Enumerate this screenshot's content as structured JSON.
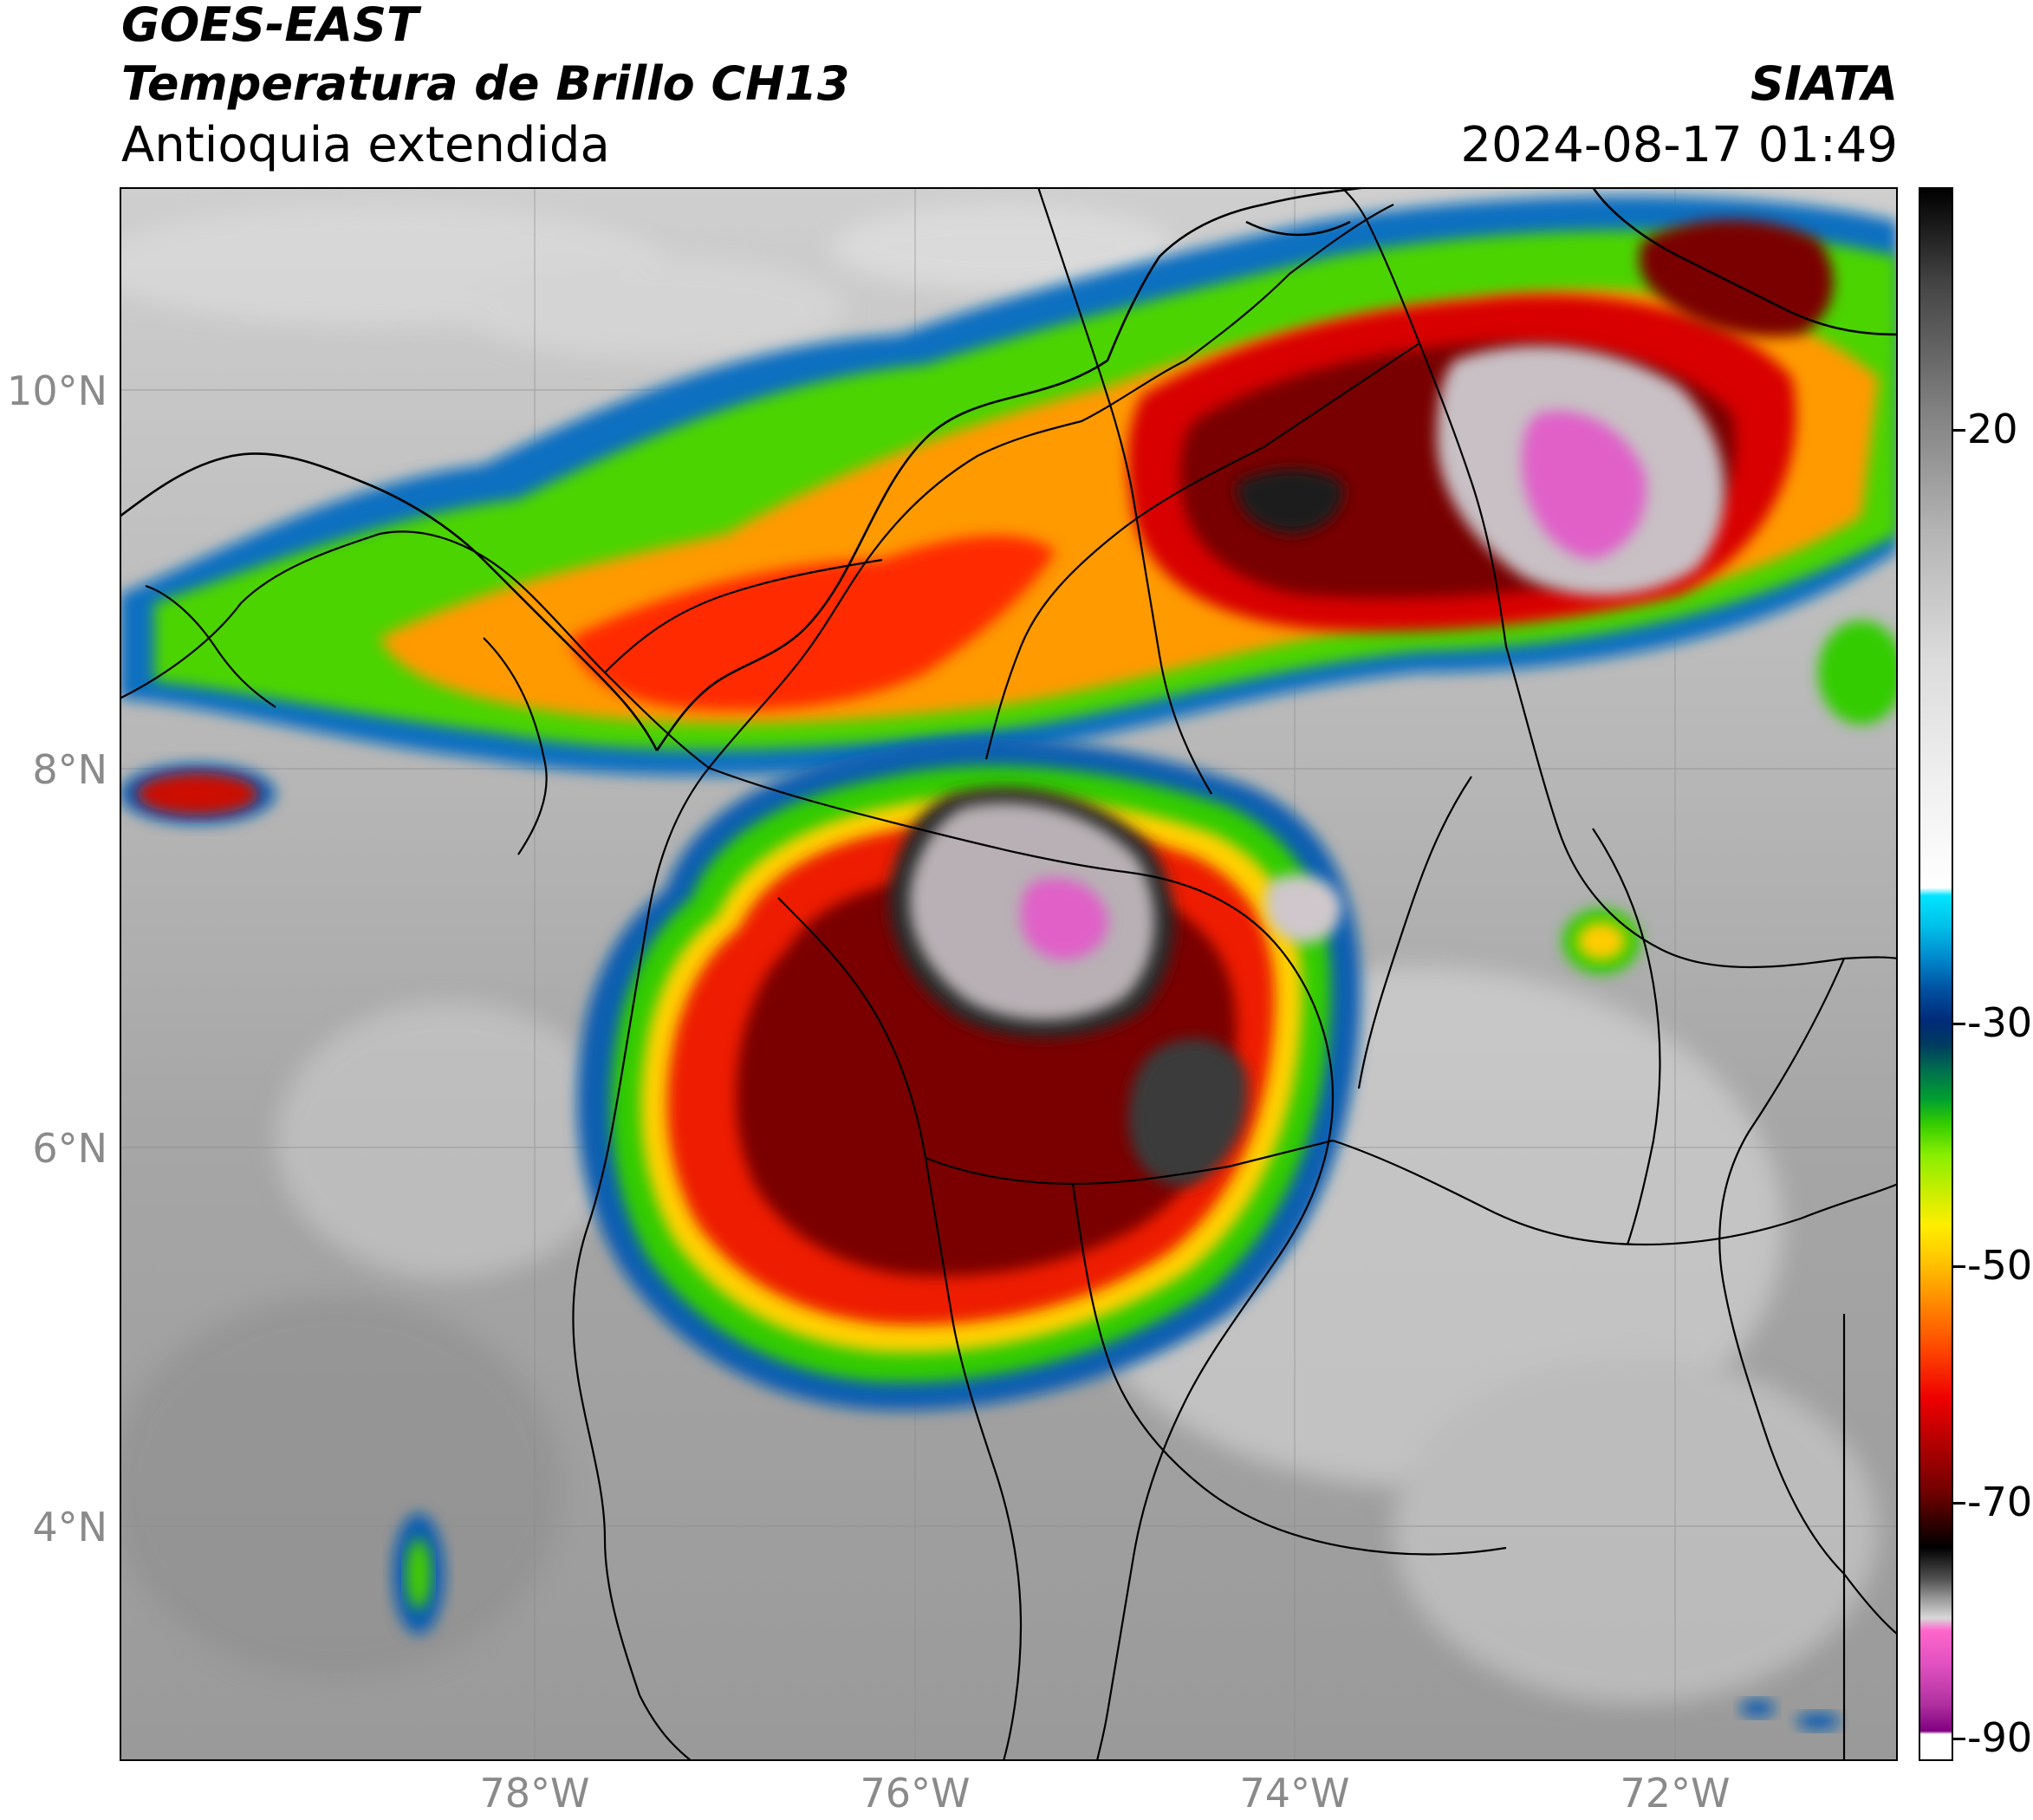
{
  "header": {
    "satellite": "GOES-EAST",
    "product": "Temperatura de Brillo CH13",
    "region": "Antioquia extendida",
    "organization": "SIATA",
    "timestamp": "2024-08-17 01:49"
  },
  "map": {
    "lat_ticks": [
      "10°N",
      "8°N",
      "6°N",
      "4°N"
    ],
    "lon_ticks": [
      "78°W",
      "76°W",
      "74°W",
      "72°W"
    ],
    "gridlines": true,
    "colors": {
      "clear_sky": "#a8a8a8",
      "border_lines": "#000000"
    },
    "features": [
      "cloud-system-north",
      "cloud-system-northeast",
      "convective-system-central-antioquia",
      "cold-cloud-top-core",
      "political-borders",
      "coastline"
    ]
  },
  "colorbar": {
    "labels": [
      "20",
      "-30",
      "-50",
      "-70",
      "-90"
    ],
    "units_hint": "brightness temperature",
    "colors": {
      "warm": "#000000",
      "cold_white": "#ffffff",
      "cyan": "#00e5ff",
      "blue": "#002a78",
      "green": "#33cc00",
      "yellow": "#ffee00",
      "orange": "#ff8800",
      "red": "#ee0000",
      "dark_red": "#700000",
      "magenta": "#e050c0",
      "purple": "#800080"
    }
  }
}
